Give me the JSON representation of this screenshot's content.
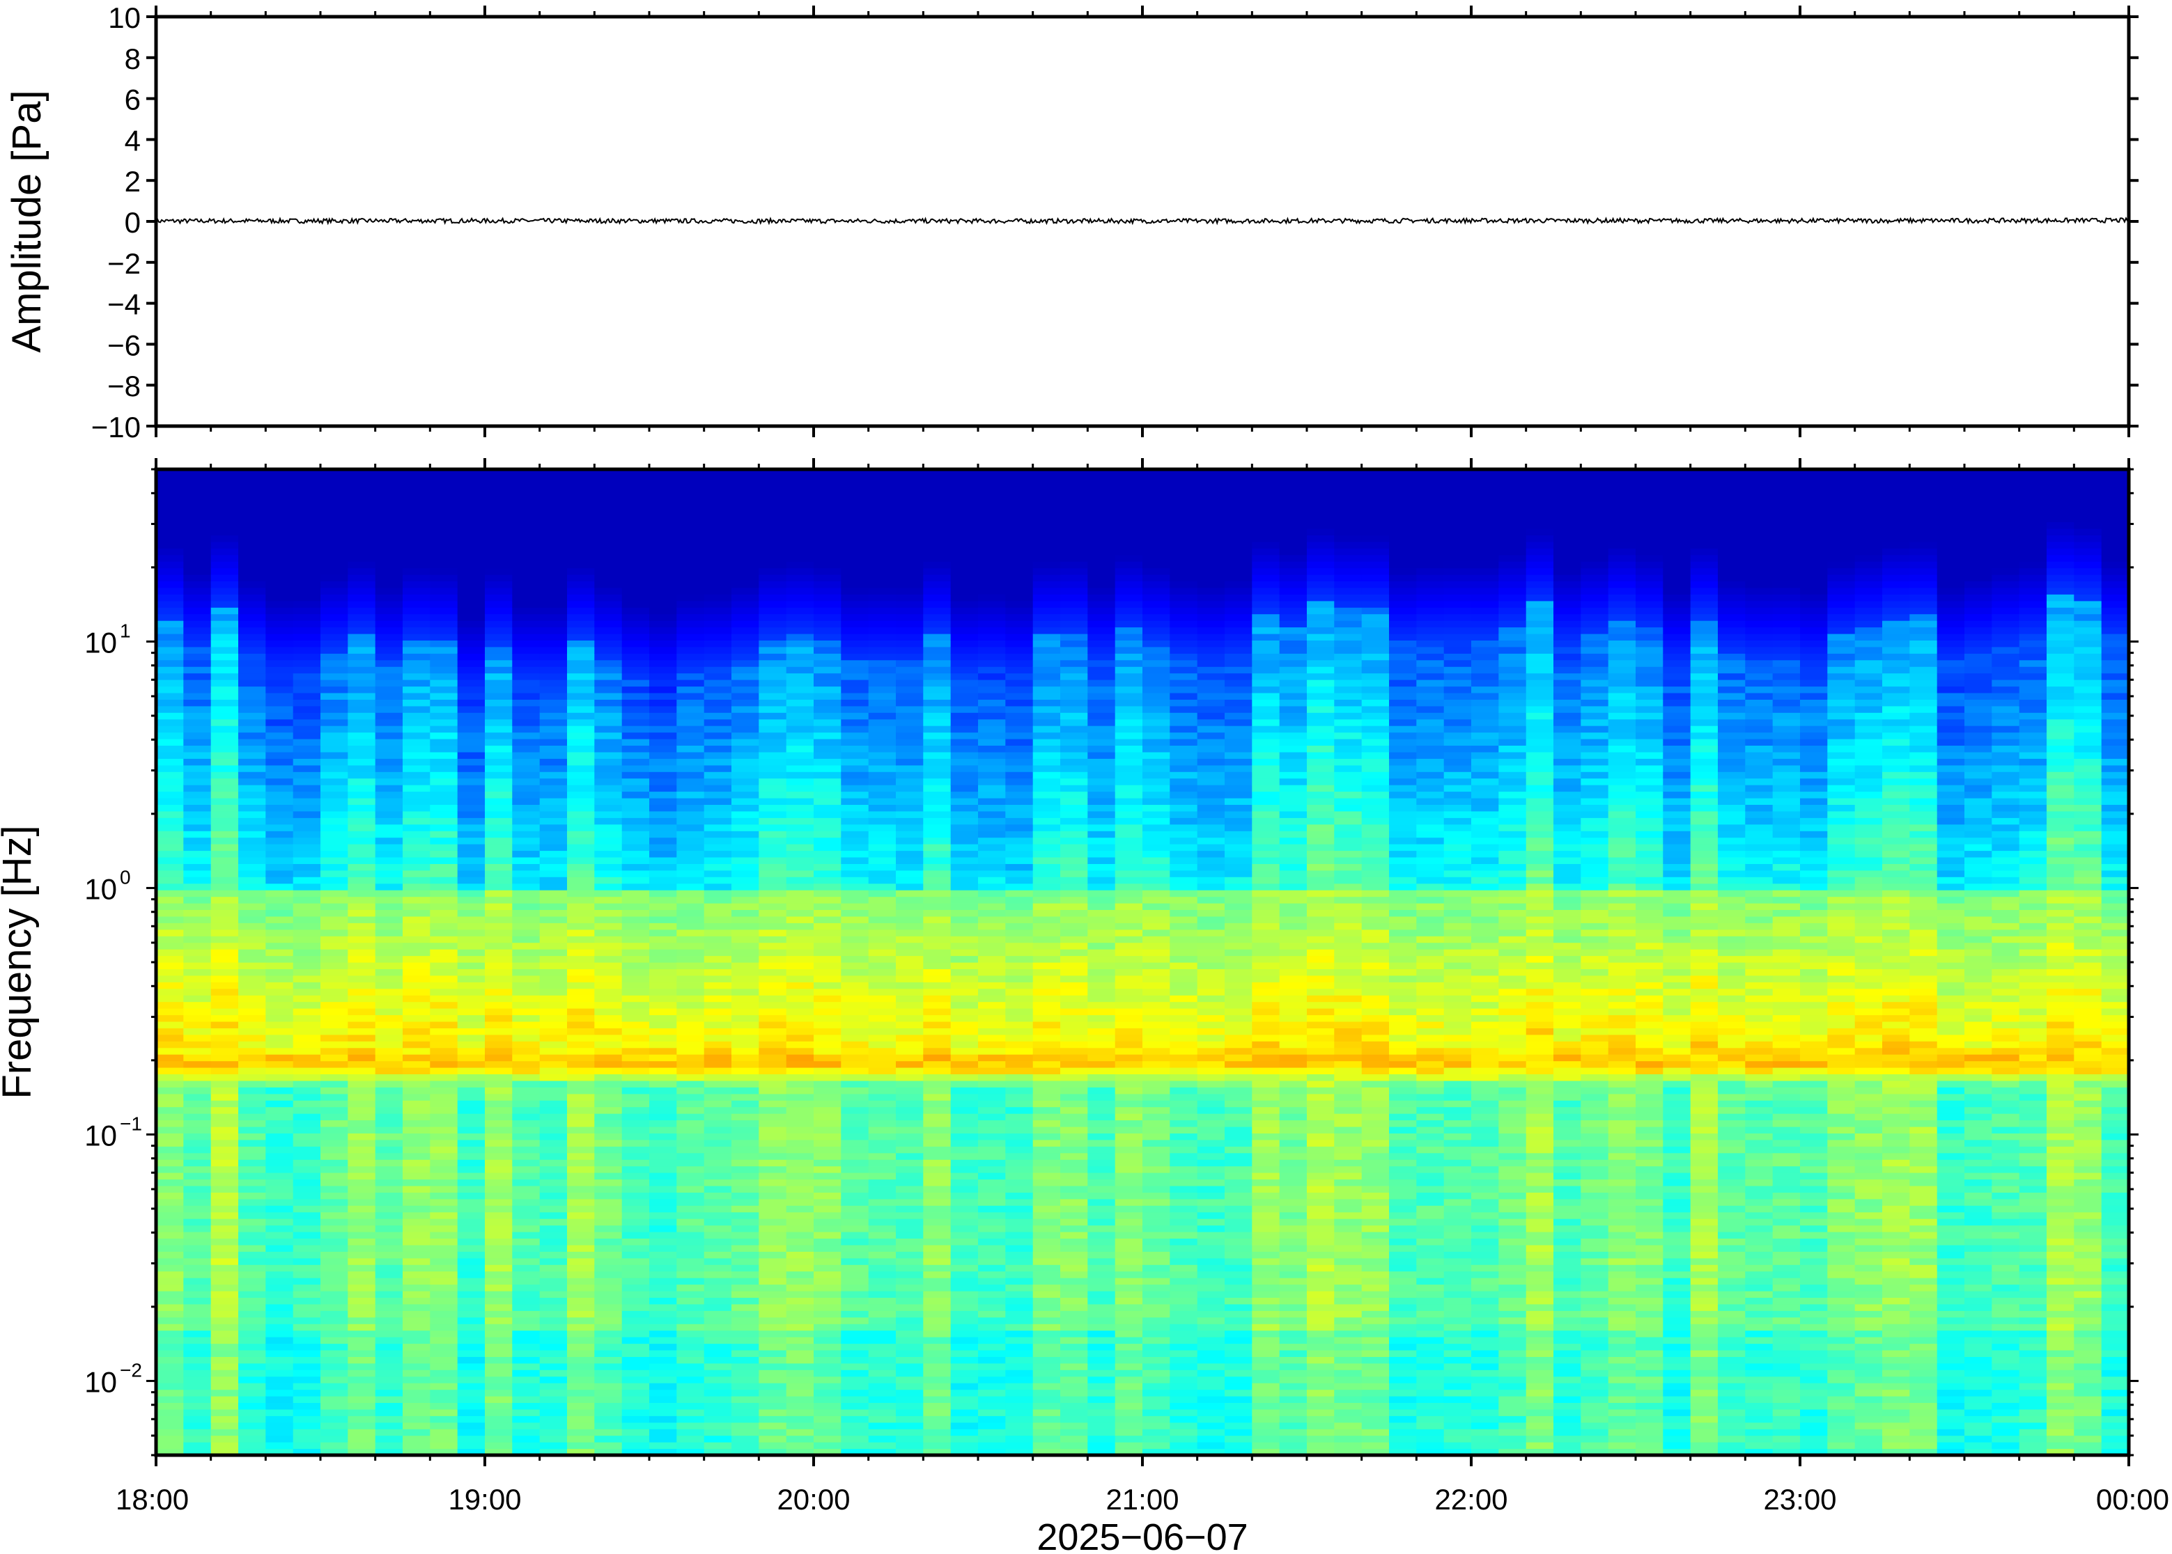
{
  "chart_data": [
    {
      "type": "line",
      "panel": "amplitude",
      "ylabel": "Amplitude [Pa]",
      "ylim": [
        -10,
        10
      ],
      "yticks": [
        -10,
        -8,
        -6,
        -4,
        -2,
        0,
        2,
        4,
        6,
        8,
        10
      ],
      "ytick_labels": [
        "−10",
        "−8",
        "−6",
        "−4",
        "−2",
        "0",
        "2",
        "4",
        "6",
        "8",
        "10"
      ],
      "series": [
        {
          "values_note_free": true,
          "x": [
            "18:00",
            "19:00",
            "20:00",
            "21:00",
            "22:00",
            "23:00",
            "00:00"
          ],
          "y": [
            0.02,
            0.03,
            0.02,
            0.02,
            0.04,
            0.03,
            0.05
          ]
        }
      ],
      "line_color": "#000000"
    },
    {
      "type": "heatmap",
      "panel": "spectrogram",
      "ylabel": "Frequency [Hz]",
      "yscale": "log",
      "ylim": [
        0.005,
        50
      ],
      "yticks": [
        0.01,
        0.1,
        1,
        10
      ],
      "ytick_labels": [
        {
          "base": "10",
          "exp": "−2"
        },
        {
          "base": "10",
          "exp": "−1"
        },
        {
          "base": "10",
          "exp": "0"
        },
        {
          "base": "10",
          "exp": "1"
        }
      ],
      "colormap": "jet",
      "x": [
        "18:00",
        "19:00",
        "20:00",
        "21:00",
        "22:00",
        "23:00",
        "00:00"
      ],
      "microbarom_band_hz": 0.2,
      "cutoff_hz_by_hour": [
        11,
        8,
        9,
        10,
        12,
        9,
        13
      ]
    }
  ],
  "xaxis": {
    "tick_labels": [
      "18:00",
      "19:00",
      "20:00",
      "21:00",
      "22:00",
      "23:00",
      "00:00"
    ],
    "xlabel": "2025−06−07"
  }
}
